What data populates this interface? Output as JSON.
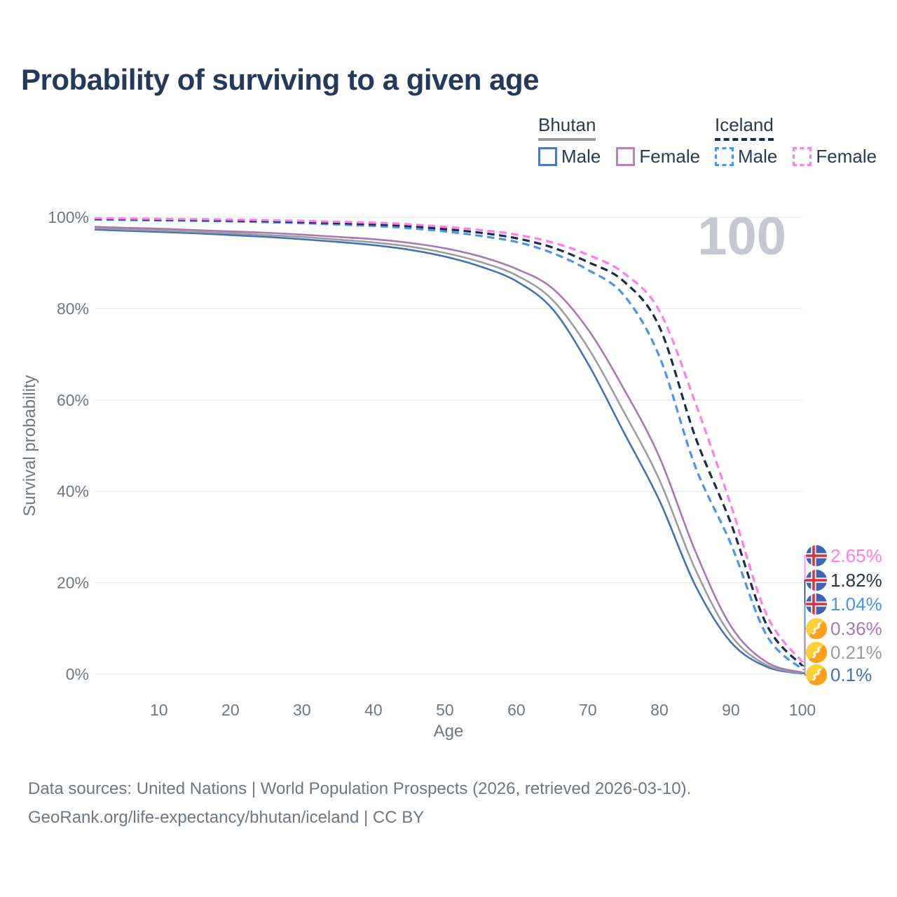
{
  "title": "Probability of surviving to a given age",
  "legend": {
    "groups": [
      {
        "country": "Bhutan",
        "line_style": "solid",
        "underline_color": "#9c9ca0",
        "items": [
          {
            "label": "Male",
            "color": "#4a7ab8"
          },
          {
            "label": "Female",
            "color": "#b583ba"
          }
        ]
      },
      {
        "country": "Iceland",
        "line_style": "dashed",
        "underline_color": "#1c2b49",
        "items": [
          {
            "label": "Male",
            "color": "#4b94ee"
          },
          {
            "label": "Female",
            "color": "#ff7de9"
          }
        ]
      }
    ]
  },
  "chart_data": {
    "type": "line",
    "title": "Probability of surviving to a given age",
    "xlabel": "Age",
    "ylabel": "Survival probability",
    "xlim": [
      1,
      100
    ],
    "ylim": [
      0,
      100
    ],
    "grid": "horizontal-only",
    "watermark": "100",
    "xticks": [
      10,
      20,
      30,
      40,
      50,
      60,
      70,
      80,
      90,
      100
    ],
    "yticks": [
      {
        "value": 0,
        "label": "0%"
      },
      {
        "value": 20,
        "label": "20%"
      },
      {
        "value": 40,
        "label": "40%"
      },
      {
        "value": 60,
        "label": "60%"
      },
      {
        "value": 80,
        "label": "80%"
      },
      {
        "value": 100,
        "label": "100%"
      }
    ],
    "series": [
      {
        "name": "Bhutan Male",
        "country": "Bhutan",
        "sex": "male",
        "color": "#4372b2",
        "line_style": "solid",
        "points": [
          [
            1,
            97.3
          ],
          [
            5,
            97.05
          ],
          [
            10,
            96.8
          ],
          [
            15,
            96.5
          ],
          [
            20,
            96.1
          ],
          [
            25,
            95.7
          ],
          [
            30,
            95.2
          ],
          [
            35,
            94.6
          ],
          [
            40,
            93.9
          ],
          [
            45,
            92.9
          ],
          [
            50,
            91.4
          ],
          [
            55,
            89.2
          ],
          [
            60,
            86.0
          ],
          [
            65,
            80.0
          ],
          [
            70,
            68.0
          ],
          [
            75,
            53.0
          ],
          [
            80,
            38.0
          ],
          [
            85,
            19.5
          ],
          [
            90,
            7.0
          ],
          [
            95,
            1.6
          ],
          [
            100,
            0.1
          ]
        ],
        "end_label": "0.1%"
      },
      {
        "name": "Bhutan Both sexes",
        "country": "Bhutan",
        "sex": "both",
        "color": "#9c9ca0",
        "line_style": "solid",
        "points": [
          [
            1,
            97.6
          ],
          [
            5,
            97.35
          ],
          [
            10,
            97.1
          ],
          [
            15,
            96.8
          ],
          [
            20,
            96.5
          ],
          [
            25,
            96.1
          ],
          [
            30,
            95.7
          ],
          [
            35,
            95.1
          ],
          [
            40,
            94.5
          ],
          [
            45,
            93.6
          ],
          [
            50,
            92.2
          ],
          [
            55,
            90.2
          ],
          [
            60,
            87.3
          ],
          [
            65,
            82.0
          ],
          [
            70,
            71.5
          ],
          [
            75,
            57.5
          ],
          [
            80,
            42.5
          ],
          [
            85,
            23.0
          ],
          [
            90,
            8.5
          ],
          [
            95,
            2.0
          ],
          [
            100,
            0.21
          ]
        ],
        "end_label": "0.21%"
      },
      {
        "name": "Bhutan Female",
        "country": "Bhutan",
        "sex": "female",
        "color": "#a878b0",
        "line_style": "solid",
        "points": [
          [
            1,
            97.9
          ],
          [
            5,
            97.7
          ],
          [
            10,
            97.5
          ],
          [
            15,
            97.2
          ],
          [
            20,
            96.9
          ],
          [
            25,
            96.6
          ],
          [
            30,
            96.2
          ],
          [
            35,
            95.7
          ],
          [
            40,
            95.2
          ],
          [
            45,
            94.4
          ],
          [
            50,
            93.2
          ],
          [
            55,
            91.4
          ],
          [
            60,
            88.7
          ],
          [
            65,
            84.5
          ],
          [
            70,
            75.5
          ],
          [
            75,
            62.5
          ],
          [
            80,
            47.5
          ],
          [
            85,
            27.0
          ],
          [
            90,
            10.5
          ],
          [
            95,
            2.6
          ],
          [
            100,
            0.36
          ]
        ],
        "end_label": "0.36%"
      },
      {
        "name": "Iceland Male",
        "country": "Iceland",
        "sex": "male",
        "color": "#4b94ee",
        "line_style": "dashed",
        "points": [
          [
            1,
            99.5
          ],
          [
            10,
            99.3
          ],
          [
            20,
            99.1
          ],
          [
            30,
            98.7
          ],
          [
            40,
            98.1
          ],
          [
            45,
            97.6
          ],
          [
            50,
            96.9
          ],
          [
            55,
            95.9
          ],
          [
            60,
            94.6
          ],
          [
            65,
            92.2
          ],
          [
            70,
            88.5
          ],
          [
            75,
            83.0
          ],
          [
            80,
            69.5
          ],
          [
            85,
            45.5
          ],
          [
            90,
            28.5
          ],
          [
            95,
            8.5
          ],
          [
            100,
            1.04
          ]
        ],
        "end_label": "1.04%"
      },
      {
        "name": "Iceland Both sexes",
        "country": "Iceland",
        "sex": "both",
        "color": "#1c2b49",
        "line_style": "dashed",
        "points": [
          [
            1,
            99.65
          ],
          [
            10,
            99.5
          ],
          [
            20,
            99.3
          ],
          [
            30,
            98.95
          ],
          [
            40,
            98.45
          ],
          [
            45,
            98.05
          ],
          [
            50,
            97.4
          ],
          [
            55,
            96.6
          ],
          [
            60,
            95.4
          ],
          [
            65,
            93.4
          ],
          [
            70,
            90.2
          ],
          [
            75,
            86.0
          ],
          [
            80,
            76.0
          ],
          [
            85,
            52.0
          ],
          [
            90,
            33.0
          ],
          [
            95,
            10.8
          ],
          [
            100,
            1.82
          ]
        ],
        "end_label": "1.82%"
      },
      {
        "name": "Iceland Female",
        "country": "Iceland",
        "sex": "female",
        "color": "#ff7de9",
        "line_style": "dashed",
        "points": [
          [
            1,
            99.8
          ],
          [
            10,
            99.65
          ],
          [
            20,
            99.5
          ],
          [
            30,
            99.2
          ],
          [
            40,
            98.8
          ],
          [
            45,
            98.45
          ],
          [
            50,
            97.9
          ],
          [
            55,
            97.2
          ],
          [
            60,
            96.2
          ],
          [
            65,
            94.5
          ],
          [
            70,
            91.8
          ],
          [
            75,
            87.8
          ],
          [
            80,
            79.5
          ],
          [
            85,
            59.5
          ],
          [
            90,
            37.0
          ],
          [
            95,
            13.0
          ],
          [
            100,
            2.65
          ]
        ],
        "end_label": "2.65%"
      }
    ],
    "end_labels": [
      {
        "value": "2.65%",
        "color": "#ff7de9",
        "flag": "iceland",
        "series_index": 5
      },
      {
        "value": "1.82%",
        "color": "#2a3442",
        "flag": "iceland",
        "series_index": 4
      },
      {
        "value": "1.04%",
        "color": "#4b94ee",
        "flag": "iceland",
        "series_index": 3
      },
      {
        "value": "0.36%",
        "color": "#a878b0",
        "flag": "bhutan",
        "series_index": 2
      },
      {
        "value": "0.21%",
        "color": "#9c9ca0",
        "flag": "bhutan",
        "series_index": 1
      },
      {
        "value": "0.1%",
        "color": "#4372b2",
        "flag": "bhutan",
        "series_index": 0
      }
    ],
    "colors": {
      "grid": "#e8e8ea",
      "axis_text": "#6f7780",
      "watermark": "#c6c8d1",
      "title_text": "#24395b"
    }
  },
  "footer": {
    "line1": "Data sources: United Nations | World Population Prospects (2026, retrieved 2026-03-10).",
    "line2": "GeoRank.org/life-expectancy/bhutan/iceland | CC BY"
  }
}
